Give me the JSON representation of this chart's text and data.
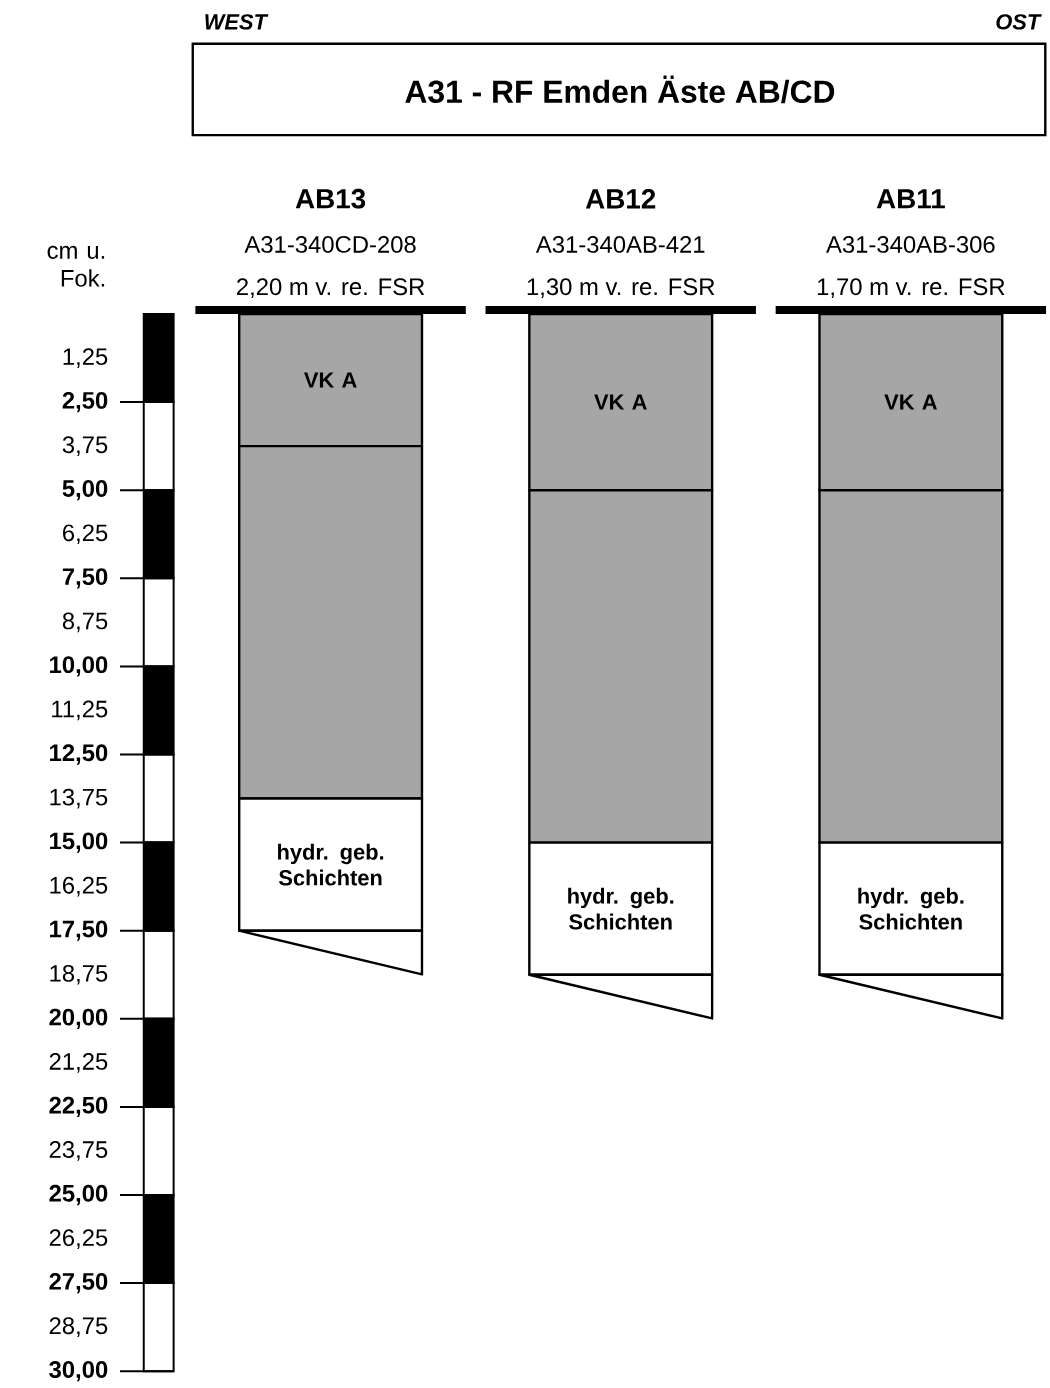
{
  "chart_data": {
    "type": "bar",
    "stacked": true,
    "title": "A31 - RF Emden Äste AB/CD",
    "ylabel": "cm u. Fok.",
    "categories": [
      "AB13",
      "AB12",
      "AB11"
    ],
    "series": [
      {
        "name": "VK A",
        "color": "#a6a6a6",
        "values": [
          3.75,
          5,
          5
        ]
      },
      {
        "color": "#a6a6a6",
        "values": [
          10,
          10,
          10
        ]
      },
      {
        "name": "hydr. geb. Schichten",
        "color": "#ffffff",
        "values": [
          3.75,
          3.75,
          3.75
        ]
      }
    ],
    "ylim": [
      30,
      0
    ],
    "yticks": [
      {
        "value": 1.25,
        "label": "1,25"
      },
      {
        "value": 2.5,
        "label": "2,50"
      },
      {
        "value": 3.75,
        "label": "3,75"
      },
      {
        "value": 5,
        "label": "5,00"
      },
      {
        "value": 6.25,
        "label": "6,25"
      },
      {
        "value": 7.5,
        "label": "7,50"
      },
      {
        "value": 8.75,
        "label": "8,75"
      },
      {
        "value": 10,
        "label": "10,00"
      },
      {
        "value": 11.25,
        "label": "11,25"
      },
      {
        "value": 12.5,
        "label": "12,50"
      },
      {
        "value": 13.75,
        "label": "13,75"
      },
      {
        "value": 15,
        "label": "15,00"
      },
      {
        "value": 16.25,
        "label": "16,25"
      },
      {
        "value": 17.5,
        "label": "17,50"
      },
      {
        "value": 18.75,
        "label": "18,75"
      },
      {
        "value": 20,
        "label": "20,00"
      },
      {
        "value": 21.25,
        "label": "21,25"
      },
      {
        "value": 22.5,
        "label": "22,50"
      },
      {
        "value": 23.75,
        "label": "23,75"
      },
      {
        "value": 25,
        "label": "25,00"
      },
      {
        "value": 26.25,
        "label": "26,25"
      },
      {
        "value": 27.5,
        "label": "27,50"
      },
      {
        "value": 28.75,
        "label": "28,75"
      },
      {
        "value": 30,
        "label": "30,00"
      }
    ],
    "annotations": [
      "WEST",
      "OST",
      "A31-340CD-208",
      "2,20 m v. re. FSR",
      "A31-340AB-421",
      "1,30 m v. re. FSR",
      "A31-340AB-306",
      "1,70 m v. re. FSR"
    ]
  }
}
